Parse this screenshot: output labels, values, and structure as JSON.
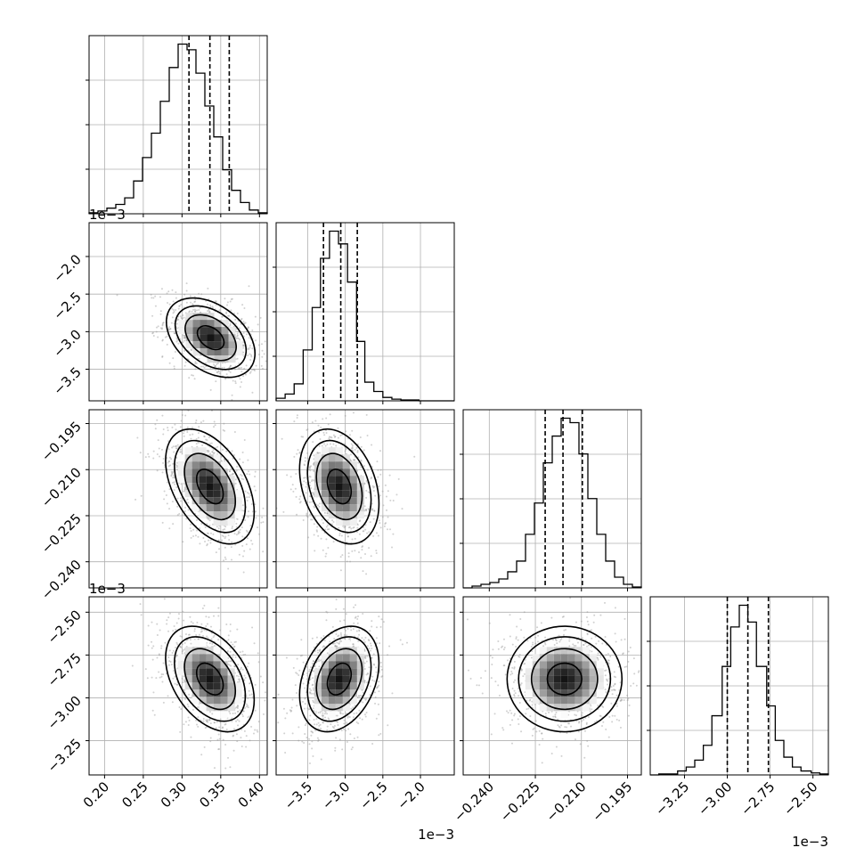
{
  "chart_data": {
    "type": "corner",
    "title": "",
    "grid": true,
    "variables": [
      {
        "index": 0,
        "range": [
          0.18,
          0.41
        ],
        "ticks": [
          0.2,
          0.25,
          0.3,
          0.35,
          0.4
        ],
        "tick_labels": [
          "0.20",
          "0.25",
          "0.30",
          "0.35",
          "0.40"
        ],
        "offset_text": "",
        "quantiles": [
          0.309,
          0.336,
          0.361
        ],
        "histogram": {
          "edges": [
            0.18,
            0.1915,
            0.203,
            0.2145,
            0.226,
            0.2375,
            0.249,
            0.2605,
            0.272,
            0.2835,
            0.295,
            0.3065,
            0.318,
            0.3295,
            0.341,
            0.3525,
            0.364,
            0.3755,
            0.387,
            0.3985,
            0.41
          ],
          "counts": [
            1,
            3,
            6,
            10,
            17,
            35,
            60,
            86,
            120,
            156,
            181,
            175,
            150,
            115,
            82,
            47,
            25,
            12,
            4,
            1
          ]
        }
      },
      {
        "index": 1,
        "range": [
          -0.00392,
          -0.00155
        ],
        "ticks": [
          -0.0035,
          -0.003,
          -0.0025,
          -0.002
        ],
        "tick_labels": [
          "−3.5",
          "−3.0",
          "−2.5",
          "−2.0"
        ],
        "offset_text": "1e−3",
        "quantiles": [
          -0.00329,
          -0.00306,
          -0.00284
        ],
        "histogram": {
          "edges": [
            -0.00392,
            -0.0038,
            -0.00368,
            -0.00356,
            -0.00344,
            -0.00333,
            -0.00321,
            -0.00309,
            -0.00297,
            -0.00285,
            -0.00274,
            -0.00262,
            -0.0025,
            -0.00238,
            -0.00226,
            -0.00214,
            -0.00202,
            -0.0019,
            -0.00179,
            -0.00167,
            -0.00155
          ],
          "counts": [
            3,
            8,
            20,
            60,
            110,
            168,
            200,
            185,
            140,
            70,
            22,
            11,
            4,
            2,
            1,
            1,
            0,
            0,
            0,
            0
          ]
        }
      },
      {
        "index": 2,
        "range": [
          -0.2485,
          -0.1905
        ],
        "ticks": [
          -0.24,
          -0.225,
          -0.21,
          -0.195
        ],
        "tick_labels": [
          "−0.240",
          "−0.225",
          "−0.210",
          "−0.195"
        ],
        "offset_text": "",
        "quantiles": [
          -0.2218,
          -0.216,
          -0.2097
        ],
        "histogram": {
          "edges": [
            -0.2485,
            -0.2456,
            -0.2427,
            -0.2398,
            -0.2369,
            -0.234,
            -0.2311,
            -0.2282,
            -0.2253,
            -0.2224,
            -0.2195,
            -0.2166,
            -0.2137,
            -0.2108,
            -0.2079,
            -0.205,
            -0.2021,
            -0.1992,
            -0.1963,
            -0.1934,
            -0.1905
          ],
          "counts": [
            0,
            2,
            4,
            6,
            10,
            18,
            30,
            60,
            95,
            140,
            170,
            190,
            185,
            150,
            100,
            60,
            30,
            12,
            4,
            1
          ]
        }
      },
      {
        "index": 3,
        "range": [
          -0.00345,
          -0.00241
        ],
        "ticks": [
          -0.00325,
          -0.003,
          -0.00275,
          -0.0025
        ],
        "tick_labels": [
          "−3.25",
          "−3.00",
          "−2.75",
          "−2.50"
        ],
        "offset_text": "1e−3",
        "quantiles": [
          -0.003,
          -0.00288,
          -0.00276
        ],
        "histogram": {
          "edges": [
            -0.00345,
            -0.0034,
            -0.00335,
            -0.00329,
            -0.00324,
            -0.00319,
            -0.00314,
            -0.00309,
            -0.00303,
            -0.00298,
            -0.00293,
            -0.00288,
            -0.00283,
            -0.00277,
            -0.00272,
            -0.00267,
            -0.00262,
            -0.00257,
            -0.00251,
            -0.00246,
            -0.00241
          ],
          "counts": [
            0,
            1,
            1,
            4,
            8,
            15,
            30,
            60,
            110,
            150,
            172,
            155,
            110,
            70,
            35,
            18,
            8,
            4,
            2,
            1
          ]
        }
      }
    ],
    "pairs": [
      {
        "row": 1,
        "col": 0,
        "mean": [
          0.337,
          -0.00308
        ],
        "sd": [
          0.026,
          0.00024
        ],
        "rho": -0.4
      },
      {
        "row": 2,
        "col": 0,
        "mean": [
          0.336,
          -0.2155
        ],
        "sd": [
          0.026,
          0.0085
        ],
        "rho": -0.45
      },
      {
        "row": 2,
        "col": 1,
        "mean": [
          -0.00308,
          -0.2155
        ],
        "sd": [
          0.00024,
          0.0085
        ],
        "rho": -0.3
      },
      {
        "row": 3,
        "col": 0,
        "mean": [
          0.336,
          -0.00289
        ],
        "sd": [
          0.026,
          0.00014
        ],
        "rho": -0.4
      },
      {
        "row": 3,
        "col": 1,
        "mean": [
          -0.00308,
          -0.00289
        ],
        "sd": [
          0.00024,
          0.00014
        ],
        "rho": 0.3
      },
      {
        "row": 3,
        "col": 2,
        "mean": [
          -0.2155,
          -0.00289
        ],
        "sd": [
          0.0085,
          0.00014
        ],
        "rho": 0.0
      }
    ]
  }
}
